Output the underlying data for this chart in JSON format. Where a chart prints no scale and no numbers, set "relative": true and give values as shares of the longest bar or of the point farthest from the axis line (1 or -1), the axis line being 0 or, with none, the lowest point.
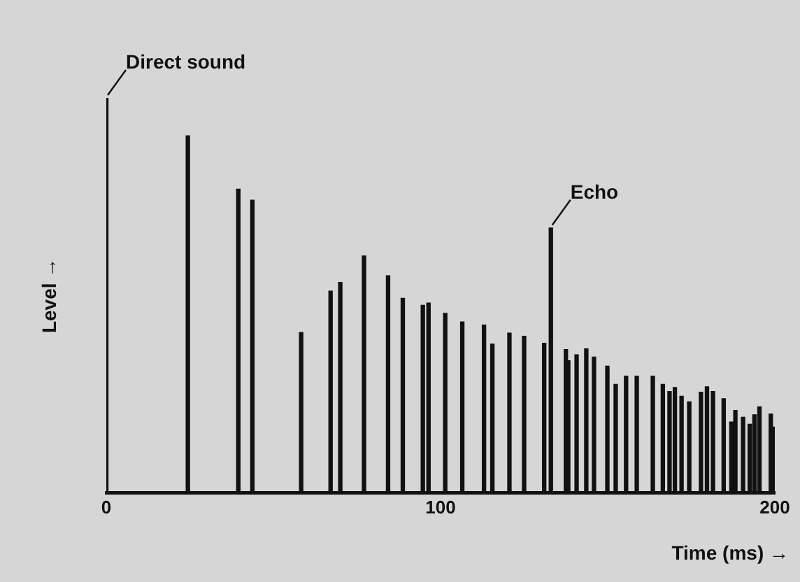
{
  "chart_data": {
    "type": "bar",
    "relative": true,
    "xlabel": "Time (ms) →",
    "ylabel": "Level →",
    "x": [
      0,
      24.4,
      39.5,
      43.7,
      58.3,
      67.1,
      70,
      77.1,
      84.3,
      88.7,
      94.7,
      96.4,
      101.4,
      106.5,
      113,
      115.5,
      120.6,
      125,
      131,
      133,
      137.5,
      138.2,
      140.7,
      143.6,
      145.9,
      149.9,
      152.4,
      155.5,
      158.7,
      163.5,
      166.5,
      168.5,
      170.1,
      172.1,
      174.4,
      177.9,
      179.7,
      181.5,
      184.7,
      187,
      188.2,
      190.5,
      192.5,
      193.9,
      195.4,
      198.8,
      200
    ],
    "values": [
      1,
      0.904,
      0.769,
      0.741,
      0.406,
      0.511,
      0.533,
      0.6,
      0.55,
      0.493,
      0.475,
      0.481,
      0.455,
      0.433,
      0.425,
      0.377,
      0.405,
      0.397,
      0.379,
      0.671,
      0.363,
      0.335,
      0.35,
      0.365,
      0.344,
      0.321,
      0.275,
      0.296,
      0.296,
      0.296,
      0.275,
      0.257,
      0.267,
      0.245,
      0.231,
      0.255,
      0.269,
      0.257,
      0.239,
      0.18,
      0.209,
      0.192,
      0.174,
      0.198,
      0.218,
      0.2,
      0.167
    ],
    "color": "#111111",
    "xlim": [
      0,
      200
    ],
    "xticks": [
      0,
      100,
      200
    ],
    "grid": false,
    "legend": false,
    "annotations": [
      {
        "text": "Direct sound",
        "x": 0,
        "y": 1
      },
      {
        "text": "Echo",
        "x": 133,
        "y": 0.671
      }
    ]
  }
}
